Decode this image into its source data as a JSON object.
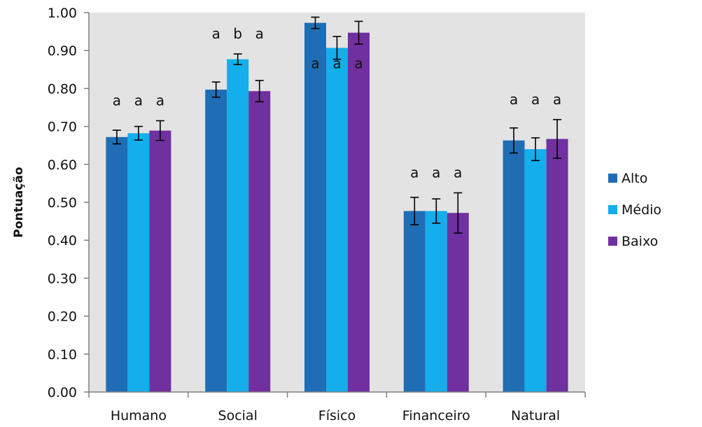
{
  "chart_data": {
    "type": "bar",
    "ylabel": "Pontuação",
    "xlabel": "",
    "ylim": [
      0,
      1.0
    ],
    "yticks": [
      "0.00",
      "0.10",
      "0.20",
      "0.30",
      "0.40",
      "0.50",
      "0.60",
      "0.70",
      "0.80",
      "0.90",
      "1.00"
    ],
    "categories": [
      "Humano",
      "Social",
      "Físico",
      "Financeiro",
      "Natural"
    ],
    "series": [
      {
        "name": "Alto",
        "color": "#1F6EB5",
        "values": [
          0.672,
          0.797,
          0.973,
          0.477,
          0.663
        ],
        "errors": [
          0.018,
          0.02,
          0.015,
          0.036,
          0.033
        ]
      },
      {
        "name": "Médio",
        "color": "#13AEEB",
        "values": [
          0.682,
          0.877,
          0.907,
          0.477,
          0.64
        ],
        "errors": [
          0.018,
          0.014,
          0.03,
          0.032,
          0.03
        ]
      },
      {
        "name": "Baixo",
        "color": "#7030A0",
        "values": [
          0.689,
          0.793,
          0.947,
          0.472,
          0.667
        ],
        "errors": [
          0.026,
          0.028,
          0.03,
          0.053,
          0.051
        ]
      }
    ],
    "significance_labels": [
      [
        "a",
        "a",
        "a"
      ],
      [
        "a",
        "b",
        "a"
      ],
      [
        "a",
        "a",
        "a"
      ],
      [
        "a",
        "a",
        "a"
      ],
      [
        "a",
        "a",
        "a"
      ]
    ],
    "significance_placement": [
      "above",
      "above",
      "inside",
      "above",
      "above"
    ],
    "grid": false,
    "plot_background": "#E3E3E3",
    "legend_position": "right"
  }
}
